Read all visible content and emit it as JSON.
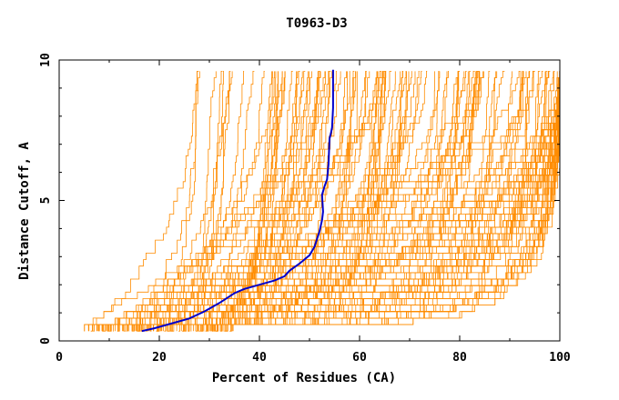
{
  "chart_data": {
    "type": "line",
    "title": "T0963-D3",
    "xlabel": "Percent of Residues (CA)",
    "ylabel": "Distance Cutoff, A",
    "xlim": [
      0,
      100
    ],
    "ylim": [
      0,
      10
    ],
    "x_ticks": [
      0,
      20,
      40,
      60,
      80,
      100
    ],
    "y_ticks": [
      0,
      5,
      10
    ],
    "grid": false,
    "colors": {
      "background_series": "#ff8c00",
      "highlight": "#0000cc",
      "axes": "#000000"
    },
    "background_series_count": 160,
    "background_series_note_x_range": [
      5,
      100
    ],
    "highlight_series": {
      "points": [
        [
          16.5,
          0.35
        ],
        [
          19,
          0.45
        ],
        [
          22,
          0.6
        ],
        [
          26,
          0.8
        ],
        [
          29,
          1.05
        ],
        [
          32,
          1.35
        ],
        [
          35,
          1.7
        ],
        [
          37,
          1.85
        ],
        [
          40,
          2.0
        ],
        [
          43,
          2.15
        ],
        [
          45,
          2.3
        ],
        [
          46,
          2.5
        ],
        [
          48,
          2.75
        ],
        [
          50,
          3.05
        ],
        [
          51,
          3.35
        ],
        [
          52,
          3.9
        ],
        [
          52.5,
          4.3
        ],
        [
          52.7,
          4.6
        ],
        [
          52.5,
          5.2
        ],
        [
          53,
          5.5
        ],
        [
          53.5,
          5.75
        ],
        [
          53.8,
          6.3
        ],
        [
          54,
          7.2
        ],
        [
          54.3,
          7.4
        ],
        [
          54.5,
          7.6
        ],
        [
          54.7,
          8.3
        ],
        [
          54.7,
          9.0
        ],
        [
          54.7,
          9.65
        ]
      ]
    }
  }
}
